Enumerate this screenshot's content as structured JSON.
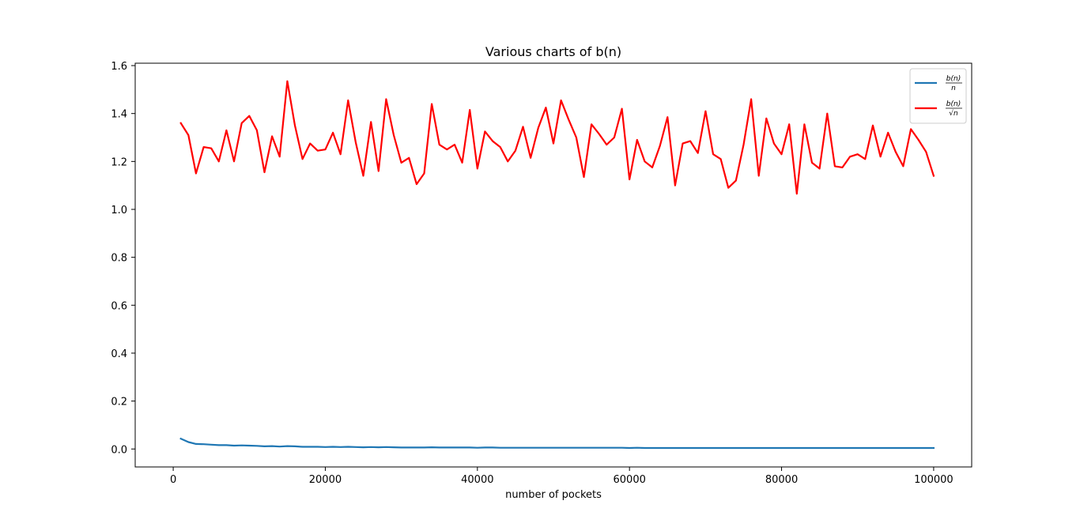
{
  "chart_data": {
    "type": "line",
    "title": "Various charts of b(n)",
    "xlabel": "number of pockets",
    "ylabel": "",
    "xlim": [
      -5000,
      105000
    ],
    "ylim": [
      -0.075,
      1.61
    ],
    "x_ticks": [
      0,
      20000,
      40000,
      60000,
      80000,
      100000
    ],
    "x_tick_labels": [
      "0",
      "20000",
      "40000",
      "60000",
      "80000",
      "100000"
    ],
    "y_ticks": [
      0.0,
      0.2,
      0.4,
      0.6,
      0.8,
      1.0,
      1.2,
      1.4,
      1.6
    ],
    "y_tick_labels": [
      "0.0",
      "0.2",
      "0.4",
      "0.6",
      "0.8",
      "1.0",
      "1.2",
      "1.4",
      "1.6"
    ],
    "grid": false,
    "legend_position": "top-right",
    "x": [
      1000,
      2000,
      3000,
      4000,
      5000,
      6000,
      7000,
      8000,
      9000,
      10000,
      11000,
      12000,
      13000,
      14000,
      15000,
      16000,
      17000,
      18000,
      19000,
      20000,
      21000,
      22000,
      23000,
      24000,
      25000,
      26000,
      27000,
      28000,
      29000,
      30000,
      31000,
      32000,
      33000,
      34000,
      35000,
      36000,
      37000,
      38000,
      39000,
      40000,
      41000,
      42000,
      43000,
      44000,
      45000,
      46000,
      47000,
      48000,
      49000,
      50000,
      51000,
      52000,
      53000,
      54000,
      55000,
      56000,
      57000,
      58000,
      59000,
      60000,
      61000,
      62000,
      63000,
      64000,
      65000,
      66000,
      67000,
      68000,
      69000,
      70000,
      71000,
      72000,
      73000,
      74000,
      75000,
      76000,
      77000,
      78000,
      79000,
      80000,
      81000,
      82000,
      83000,
      84000,
      85000,
      86000,
      87000,
      88000,
      89000,
      90000,
      91000,
      92000,
      93000,
      94000,
      95000,
      96000,
      97000,
      98000,
      99000,
      100000
    ],
    "series": [
      {
        "name": "b(n)/n",
        "legend_numerator": "b(n)",
        "legend_denominator": "n",
        "color": "#1f77b4",
        "values": [
          0.043,
          0.029,
          0.021,
          0.02,
          0.018,
          0.016,
          0.016,
          0.014,
          0.015,
          0.014,
          0.013,
          0.011,
          0.012,
          0.01,
          0.012,
          0.011,
          0.009,
          0.009,
          0.009,
          0.008,
          0.009,
          0.008,
          0.009,
          0.008,
          0.007,
          0.008,
          0.007,
          0.008,
          0.007,
          0.006,
          0.006,
          0.006,
          0.006,
          0.007,
          0.006,
          0.006,
          0.006,
          0.006,
          0.006,
          0.005,
          0.006,
          0.006,
          0.005,
          0.005,
          0.005,
          0.005,
          0.005,
          0.005,
          0.005,
          0.005,
          0.005,
          0.005,
          0.005,
          0.005,
          0.005,
          0.005,
          0.005,
          0.005,
          0.005,
          0.004,
          0.005,
          0.004,
          0.004,
          0.004,
          0.004,
          0.004,
          0.004,
          0.004,
          0.004,
          0.004,
          0.004,
          0.004,
          0.004,
          0.004,
          0.004,
          0.004,
          0.004,
          0.004,
          0.004,
          0.004,
          0.004,
          0.004,
          0.004,
          0.004,
          0.004,
          0.004,
          0.004,
          0.004,
          0.004,
          0.004,
          0.004,
          0.004,
          0.004,
          0.004,
          0.004,
          0.004,
          0.004,
          0.004,
          0.004,
          0.004
        ]
      },
      {
        "name": "b(n)/√n",
        "legend_numerator": "b(n)",
        "legend_denominator": "√n",
        "color": "#ff0000",
        "values": [
          1.36,
          1.31,
          1.15,
          1.26,
          1.255,
          1.2,
          1.33,
          1.2,
          1.36,
          1.39,
          1.33,
          1.155,
          1.305,
          1.22,
          1.535,
          1.35,
          1.21,
          1.275,
          1.245,
          1.25,
          1.32,
          1.23,
          1.455,
          1.28,
          1.14,
          1.365,
          1.16,
          1.46,
          1.31,
          1.195,
          1.215,
          1.105,
          1.15,
          1.44,
          1.27,
          1.25,
          1.27,
          1.195,
          1.415,
          1.17,
          1.325,
          1.285,
          1.26,
          1.2,
          1.245,
          1.345,
          1.215,
          1.34,
          1.425,
          1.275,
          1.455,
          1.375,
          1.3,
          1.135,
          1.355,
          1.315,
          1.27,
          1.3,
          1.42,
          1.125,
          1.29,
          1.2,
          1.175,
          1.265,
          1.385,
          1.1,
          1.275,
          1.285,
          1.235,
          1.41,
          1.23,
          1.21,
          1.09,
          1.12,
          1.27,
          1.46,
          1.14,
          1.38,
          1.275,
          1.23,
          1.355,
          1.065,
          1.355,
          1.195,
          1.17,
          1.4,
          1.18,
          1.175,
          1.22,
          1.23,
          1.21,
          1.35,
          1.22,
          1.32,
          1.24,
          1.18,
          1.335,
          1.29,
          1.24,
          1.14
        ]
      }
    ]
  }
}
